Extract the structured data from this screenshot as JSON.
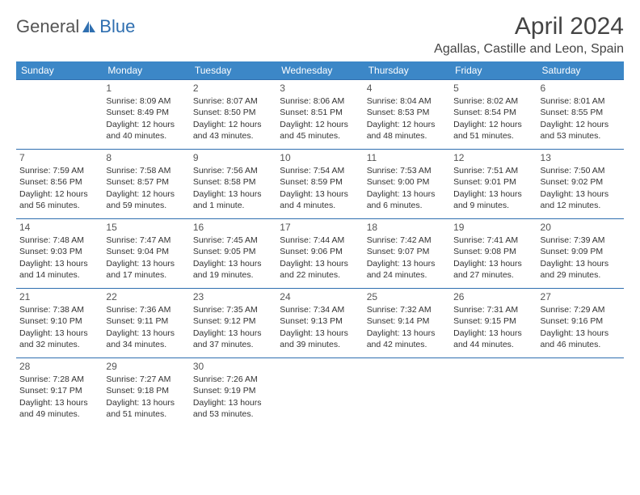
{
  "logo": {
    "text1": "General",
    "text2": "Blue"
  },
  "title": "April 2024",
  "location": "Agallas, Castille and Leon, Spain",
  "colors": {
    "header_bg": "#3c87c7",
    "border": "#2f6fb0",
    "text": "#333333",
    "title_text": "#444444"
  },
  "weekdays": [
    "Sunday",
    "Monday",
    "Tuesday",
    "Wednesday",
    "Thursday",
    "Friday",
    "Saturday"
  ],
  "weeks": [
    [
      null,
      {
        "d": "1",
        "sr": "8:09 AM",
        "ss": "8:49 PM",
        "dl": "12 hours and 40 minutes."
      },
      {
        "d": "2",
        "sr": "8:07 AM",
        "ss": "8:50 PM",
        "dl": "12 hours and 43 minutes."
      },
      {
        "d": "3",
        "sr": "8:06 AM",
        "ss": "8:51 PM",
        "dl": "12 hours and 45 minutes."
      },
      {
        "d": "4",
        "sr": "8:04 AM",
        "ss": "8:53 PM",
        "dl": "12 hours and 48 minutes."
      },
      {
        "d": "5",
        "sr": "8:02 AM",
        "ss": "8:54 PM",
        "dl": "12 hours and 51 minutes."
      },
      {
        "d": "6",
        "sr": "8:01 AM",
        "ss": "8:55 PM",
        "dl": "12 hours and 53 minutes."
      }
    ],
    [
      {
        "d": "7",
        "sr": "7:59 AM",
        "ss": "8:56 PM",
        "dl": "12 hours and 56 minutes."
      },
      {
        "d": "8",
        "sr": "7:58 AM",
        "ss": "8:57 PM",
        "dl": "12 hours and 59 minutes."
      },
      {
        "d": "9",
        "sr": "7:56 AM",
        "ss": "8:58 PM",
        "dl": "13 hours and 1 minute."
      },
      {
        "d": "10",
        "sr": "7:54 AM",
        "ss": "8:59 PM",
        "dl": "13 hours and 4 minutes."
      },
      {
        "d": "11",
        "sr": "7:53 AM",
        "ss": "9:00 PM",
        "dl": "13 hours and 6 minutes."
      },
      {
        "d": "12",
        "sr": "7:51 AM",
        "ss": "9:01 PM",
        "dl": "13 hours and 9 minutes."
      },
      {
        "d": "13",
        "sr": "7:50 AM",
        "ss": "9:02 PM",
        "dl": "13 hours and 12 minutes."
      }
    ],
    [
      {
        "d": "14",
        "sr": "7:48 AM",
        "ss": "9:03 PM",
        "dl": "13 hours and 14 minutes."
      },
      {
        "d": "15",
        "sr": "7:47 AM",
        "ss": "9:04 PM",
        "dl": "13 hours and 17 minutes."
      },
      {
        "d": "16",
        "sr": "7:45 AM",
        "ss": "9:05 PM",
        "dl": "13 hours and 19 minutes."
      },
      {
        "d": "17",
        "sr": "7:44 AM",
        "ss": "9:06 PM",
        "dl": "13 hours and 22 minutes."
      },
      {
        "d": "18",
        "sr": "7:42 AM",
        "ss": "9:07 PM",
        "dl": "13 hours and 24 minutes."
      },
      {
        "d": "19",
        "sr": "7:41 AM",
        "ss": "9:08 PM",
        "dl": "13 hours and 27 minutes."
      },
      {
        "d": "20",
        "sr": "7:39 AM",
        "ss": "9:09 PM",
        "dl": "13 hours and 29 minutes."
      }
    ],
    [
      {
        "d": "21",
        "sr": "7:38 AM",
        "ss": "9:10 PM",
        "dl": "13 hours and 32 minutes."
      },
      {
        "d": "22",
        "sr": "7:36 AM",
        "ss": "9:11 PM",
        "dl": "13 hours and 34 minutes."
      },
      {
        "d": "23",
        "sr": "7:35 AM",
        "ss": "9:12 PM",
        "dl": "13 hours and 37 minutes."
      },
      {
        "d": "24",
        "sr": "7:34 AM",
        "ss": "9:13 PM",
        "dl": "13 hours and 39 minutes."
      },
      {
        "d": "25",
        "sr": "7:32 AM",
        "ss": "9:14 PM",
        "dl": "13 hours and 42 minutes."
      },
      {
        "d": "26",
        "sr": "7:31 AM",
        "ss": "9:15 PM",
        "dl": "13 hours and 44 minutes."
      },
      {
        "d": "27",
        "sr": "7:29 AM",
        "ss": "9:16 PM",
        "dl": "13 hours and 46 minutes."
      }
    ],
    [
      {
        "d": "28",
        "sr": "7:28 AM",
        "ss": "9:17 PM",
        "dl": "13 hours and 49 minutes."
      },
      {
        "d": "29",
        "sr": "7:27 AM",
        "ss": "9:18 PM",
        "dl": "13 hours and 51 minutes."
      },
      {
        "d": "30",
        "sr": "7:26 AM",
        "ss": "9:19 PM",
        "dl": "13 hours and 53 minutes."
      },
      null,
      null,
      null,
      null
    ]
  ],
  "labels": {
    "sunrise": "Sunrise:",
    "sunset": "Sunset:",
    "daylight": "Daylight:"
  }
}
